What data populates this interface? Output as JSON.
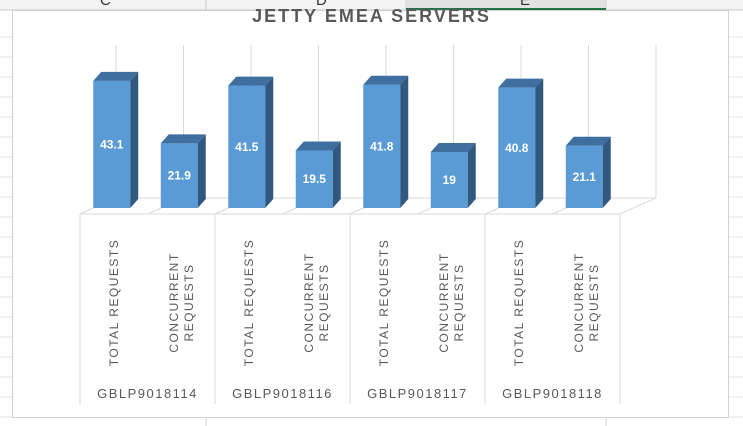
{
  "spreadsheet": {
    "column_headers": [
      "C",
      "D",
      "E"
    ],
    "selected_column": "E"
  },
  "colors": {
    "bar_front": "#5b9bd5",
    "bar_top": "#3f6f9f",
    "bar_side": "#31587f",
    "grid": "#d9d9d9",
    "axis_text": "#595959",
    "selected_header": "#217346"
  },
  "chart_data": {
    "type": "bar",
    "style": "3d-column",
    "title": "JETTY EMEA SERVERS",
    "groups": [
      {
        "name": "GBLP9018114",
        "categories": [
          "TOTAL REQUESTS",
          "CONCURRENT REQUESTS"
        ],
        "values": [
          43.1,
          21.9
        ]
      },
      {
        "name": "GBLP9018116",
        "categories": [
          "TOTAL REQUESTS",
          "CONCURRENT REQUESTS"
        ],
        "values": [
          41.5,
          19.5
        ]
      },
      {
        "name": "GBLP9018117",
        "categories": [
          "TOTAL REQUESTS",
          "CONCURRENT REQUESTS"
        ],
        "values": [
          41.8,
          19
        ]
      },
      {
        "name": "GBLP9018118",
        "categories": [
          "TOTAL REQUESTS",
          "CONCURRENT REQUESTS"
        ],
        "values": [
          40.8,
          21.1
        ]
      }
    ],
    "data_labels": true,
    "legend": "none",
    "gridlines": true
  }
}
